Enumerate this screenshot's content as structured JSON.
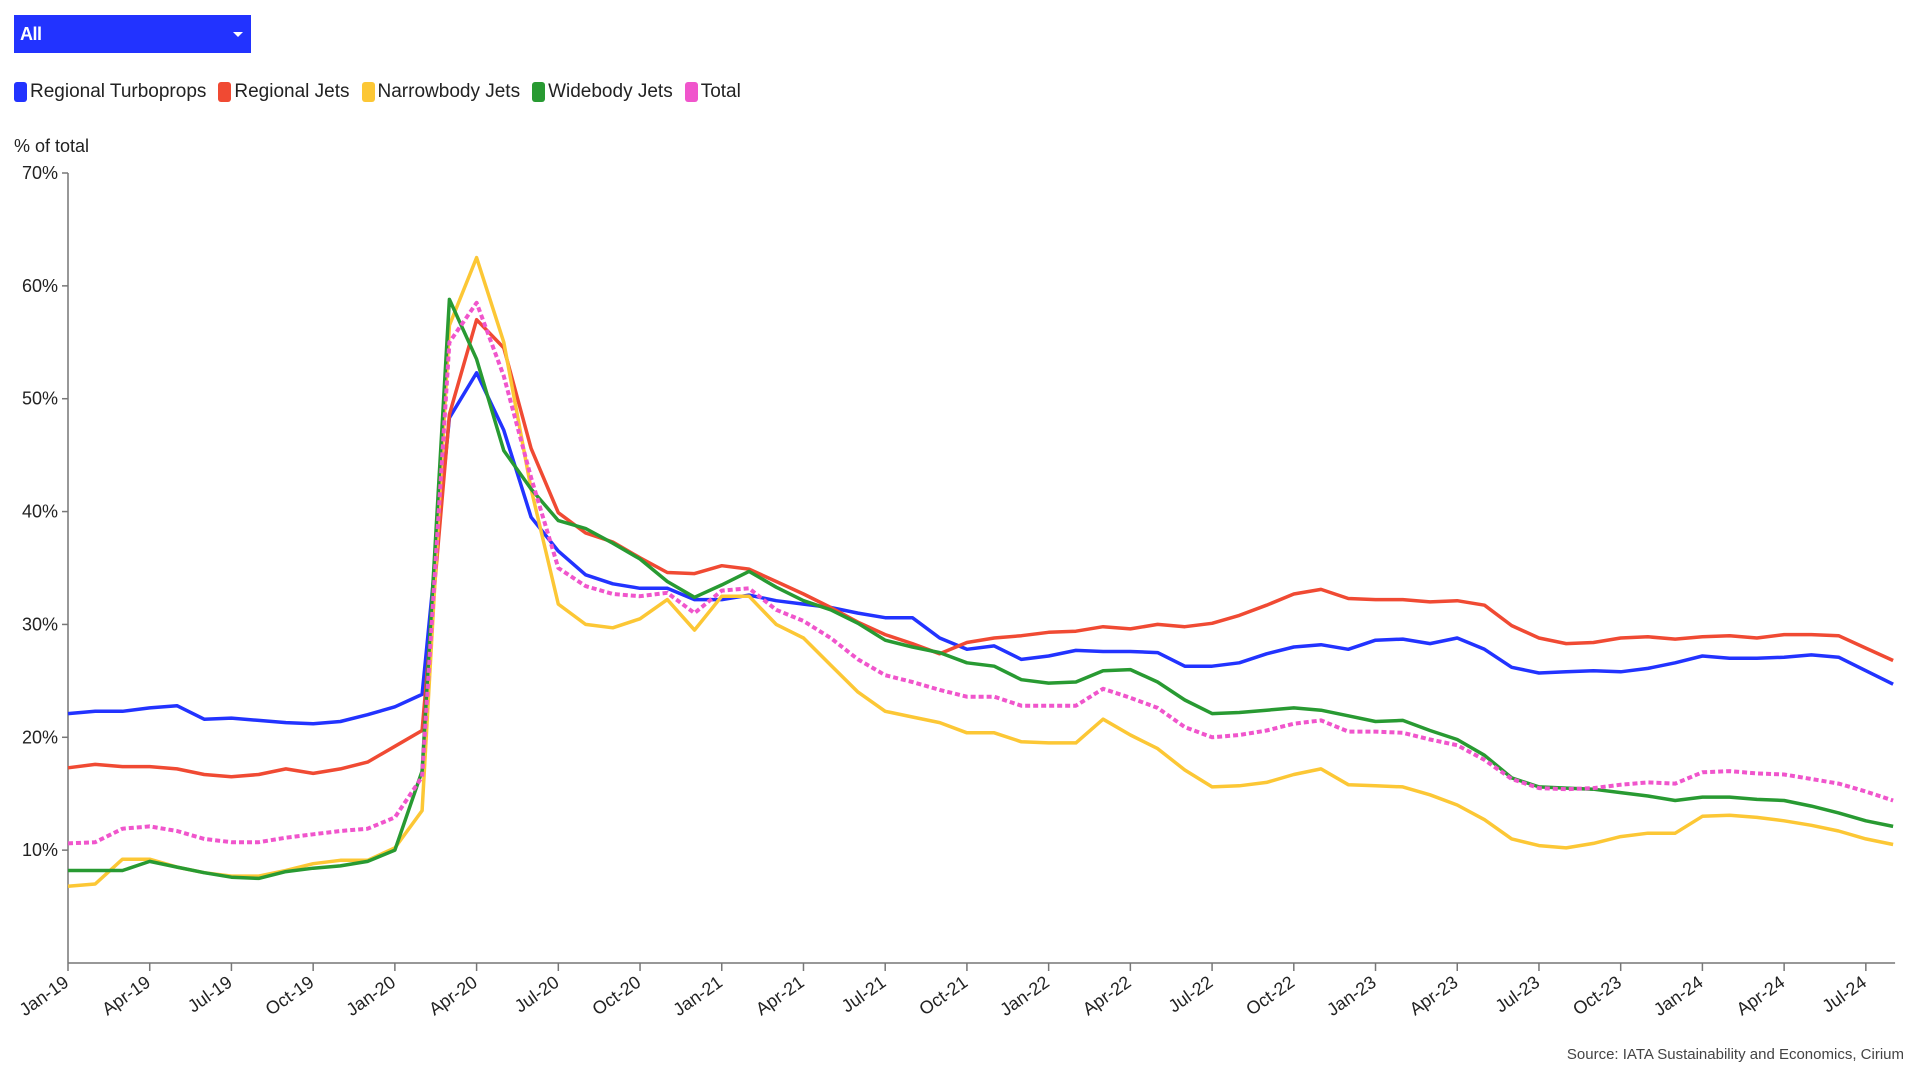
{
  "filter": {
    "selected": "All",
    "icon": "caret-down-icon"
  },
  "legend": [
    {
      "label": "Regional Turboprops",
      "color": "#2233ff"
    },
    {
      "label": "Regional Jets",
      "color": "#f04a33"
    },
    {
      "label": "Narrowbody Jets",
      "color": "#fcc735"
    },
    {
      "label": "Widebody Jets",
      "color": "#289a32"
    },
    {
      "label": "Total",
      "color": "#f055cc"
    }
  ],
  "source": "Source: IATA Sustainability and Economics, Cirium",
  "chart_data": {
    "type": "line",
    "ylabel": "% of total",
    "ylim": [
      0,
      70
    ],
    "yticks": [
      "10%",
      "20%",
      "30%",
      "40%",
      "50%",
      "60%",
      "70%"
    ],
    "xticks": [
      "Jan-19",
      "Apr-19",
      "Jul-19",
      "Oct-19",
      "Jan-20",
      "Apr-20",
      "Jul-20",
      "Oct-20",
      "Jan-21",
      "Apr-21",
      "Jul-21",
      "Oct-21",
      "Jan-22",
      "Apr-22",
      "Jul-22",
      "Oct-22",
      "Jan-23",
      "Apr-23",
      "Jul-23",
      "Oct-23",
      "Jan-24",
      "Apr-24",
      "Jul-24"
    ],
    "x_range": [
      "Jan-19",
      "Aug-24"
    ],
    "x_frequency": "monthly",
    "grid": false,
    "legend_position": "top-left",
    "series": [
      {
        "name": "Regional Turboprops",
        "color": "#2233ff",
        "dashed": false,
        "values": [
          22.1,
          22.3,
          22.3,
          22.6,
          22.8,
          21.6,
          21.7,
          21.5,
          21.3,
          21.2,
          21.4,
          22.0,
          22.7,
          23.8,
          48.3,
          52.3,
          47.2,
          39.5,
          36.5,
          34.4,
          33.6,
          33.2,
          33.2,
          32.2,
          32.2,
          32.6,
          32.1,
          31.8,
          31.5,
          31.0,
          30.6,
          30.6,
          28.8,
          27.8,
          28.1,
          26.9,
          27.2,
          27.7,
          27.6,
          27.6,
          27.5,
          26.3,
          26.3,
          26.6,
          27.4,
          28.0,
          28.2,
          27.8,
          28.6,
          28.7,
          28.3,
          28.8,
          27.8,
          26.2,
          25.7,
          25.8,
          25.9,
          25.8,
          26.1,
          26.6,
          27.2,
          27.0,
          27.0,
          27.1,
          27.3,
          27.1,
          25.9,
          24.7
        ]
      },
      {
        "name": "Regional Jets",
        "color": "#f04a33",
        "dashed": false,
        "values": [
          17.3,
          17.6,
          17.4,
          17.4,
          17.2,
          16.7,
          16.5,
          16.7,
          17.2,
          16.8,
          17.2,
          17.8,
          19.2,
          20.6,
          48.6,
          57.0,
          54.5,
          45.6,
          39.9,
          38.1,
          37.3,
          35.9,
          34.6,
          34.5,
          35.2,
          34.9,
          33.8,
          32.7,
          31.5,
          30.2,
          29.1,
          28.3,
          27.4,
          28.4,
          28.8,
          29.0,
          29.3,
          29.4,
          29.8,
          29.6,
          30.0,
          29.8,
          30.1,
          30.8,
          31.7,
          32.7,
          33.1,
          32.3,
          32.2,
          32.2,
          32.0,
          32.1,
          31.7,
          29.9,
          28.8,
          28.3,
          28.4,
          28.8,
          28.9,
          28.7,
          28.9,
          29.0,
          28.8,
          29.1,
          29.1,
          29.0,
          27.9,
          26.8
        ]
      },
      {
        "name": "Narrowbody Jets",
        "color": "#fcc735",
        "dashed": false,
        "values": [
          6.8,
          7.0,
          9.2,
          9.2,
          8.5,
          8.0,
          7.7,
          7.7,
          8.2,
          8.8,
          9.1,
          9.1,
          10.2,
          13.5,
          56.5,
          62.5,
          55.0,
          42.0,
          31.8,
          30.0,
          29.7,
          30.5,
          32.2,
          29.5,
          32.5,
          32.5,
          30.0,
          28.8,
          26.4,
          24.0,
          22.3,
          21.8,
          21.3,
          20.4,
          20.4,
          19.6,
          19.5,
          19.5,
          21.6,
          20.2,
          19.0,
          17.1,
          15.6,
          15.7,
          16.0,
          16.7,
          17.2,
          15.8,
          15.7,
          15.6,
          14.9,
          14.0,
          12.7,
          11.0,
          10.4,
          10.2,
          10.6,
          11.2,
          11.5,
          11.5,
          13.0,
          13.1,
          12.9,
          12.6,
          12.2,
          11.7,
          11.0,
          10.5
        ]
      },
      {
        "name": "Widebody Jets",
        "color": "#289a32",
        "dashed": false,
        "values": [
          8.2,
          8.2,
          8.2,
          9.0,
          8.5,
          8.0,
          7.6,
          7.5,
          8.1,
          8.4,
          8.6,
          9.0,
          10.0,
          17.0,
          58.8,
          53.5,
          45.4,
          42.0,
          39.2,
          38.5,
          37.2,
          35.8,
          33.8,
          32.4,
          33.5,
          34.7,
          33.3,
          32.1,
          31.3,
          30.1,
          28.6,
          28.0,
          27.5,
          26.6,
          26.3,
          25.1,
          24.8,
          24.9,
          25.9,
          26.0,
          24.9,
          23.3,
          22.1,
          22.2,
          22.4,
          22.6,
          22.4,
          21.9,
          21.4,
          21.5,
          20.6,
          19.8,
          18.4,
          16.4,
          15.6,
          15.5,
          15.4,
          15.1,
          14.8,
          14.4,
          14.7,
          14.7,
          14.5,
          14.4,
          13.9,
          13.3,
          12.6,
          12.1
        ]
      },
      {
        "name": "Total",
        "color": "#f055cc",
        "dashed": true,
        "values": [
          10.6,
          10.7,
          11.9,
          12.1,
          11.7,
          11.0,
          10.7,
          10.7,
          11.1,
          11.4,
          11.7,
          11.9,
          12.9,
          16.5,
          55.0,
          58.5,
          52.0,
          43.0,
          35.0,
          33.4,
          32.7,
          32.5,
          32.8,
          31.0,
          33.0,
          33.2,
          31.3,
          30.3,
          28.8,
          26.9,
          25.5,
          24.9,
          24.2,
          23.6,
          23.6,
          22.8,
          22.8,
          22.8,
          24.3,
          23.5,
          22.6,
          20.9,
          20.0,
          20.2,
          20.6,
          21.2,
          21.5,
          20.5,
          20.5,
          20.4,
          19.8,
          19.3,
          18.0,
          16.3,
          15.5,
          15.4,
          15.5,
          15.8,
          16.0,
          15.9,
          16.9,
          17.0,
          16.8,
          16.7,
          16.3,
          15.9,
          15.2,
          14.4
        ]
      }
    ]
  }
}
